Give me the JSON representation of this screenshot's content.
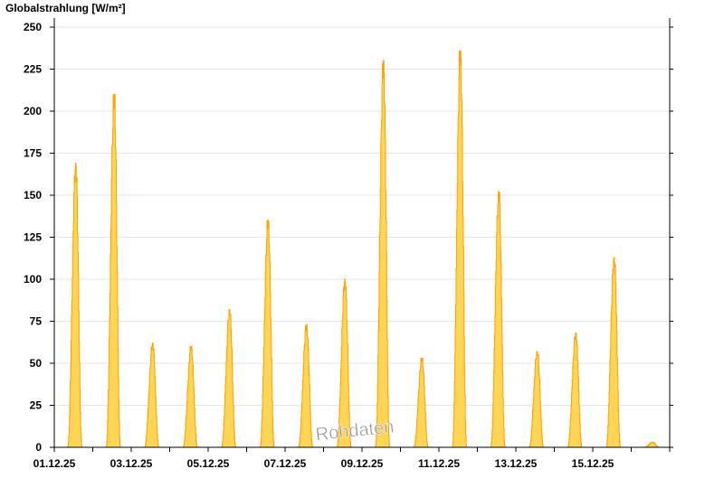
{
  "chart_data": {
    "type": "area",
    "title": "Globalstrahlung [W/m²]",
    "ylabel": "Globalstrahlung [W/m²]",
    "xlabel": "",
    "ylim": [
      0,
      250
    ],
    "yticks": [
      0,
      25,
      50,
      75,
      100,
      125,
      150,
      175,
      200,
      225,
      250
    ],
    "xrange": [
      "01.12.25",
      "17.12.25"
    ],
    "xtick_labels": [
      "01.12.25",
      "03.12.25",
      "05.12.25",
      "07.12.25",
      "09.12.25",
      "11.12.25",
      "13.12.25",
      "15.12.25"
    ],
    "grid": true,
    "watermark": "Rohdaten",
    "colors": {
      "fill": "#FFD555",
      "line": "#FFA000",
      "grid": "#E6E6E6"
    },
    "daily_peaks": [
      {
        "date": "01.12.25",
        "peak": 169
      },
      {
        "date": "02.12.25",
        "peak": 210
      },
      {
        "date": "03.12.25",
        "peak": 62
      },
      {
        "date": "04.12.25",
        "peak": 60
      },
      {
        "date": "05.12.25",
        "peak": 82
      },
      {
        "date": "06.12.25",
        "peak": 135
      },
      {
        "date": "07.12.25",
        "peak": 73
      },
      {
        "date": "08.12.25",
        "peak": 100
      },
      {
        "date": "09.12.25",
        "peak": 230
      },
      {
        "date": "10.12.25",
        "peak": 53
      },
      {
        "date": "11.12.25",
        "peak": 236
      },
      {
        "date": "12.12.25",
        "peak": 152
      },
      {
        "date": "13.12.25",
        "peak": 57
      },
      {
        "date": "14.12.25",
        "peak": 68
      },
      {
        "date": "15.12.25",
        "peak": 113
      },
      {
        "date": "16.12.25",
        "peak": 3
      }
    ]
  }
}
